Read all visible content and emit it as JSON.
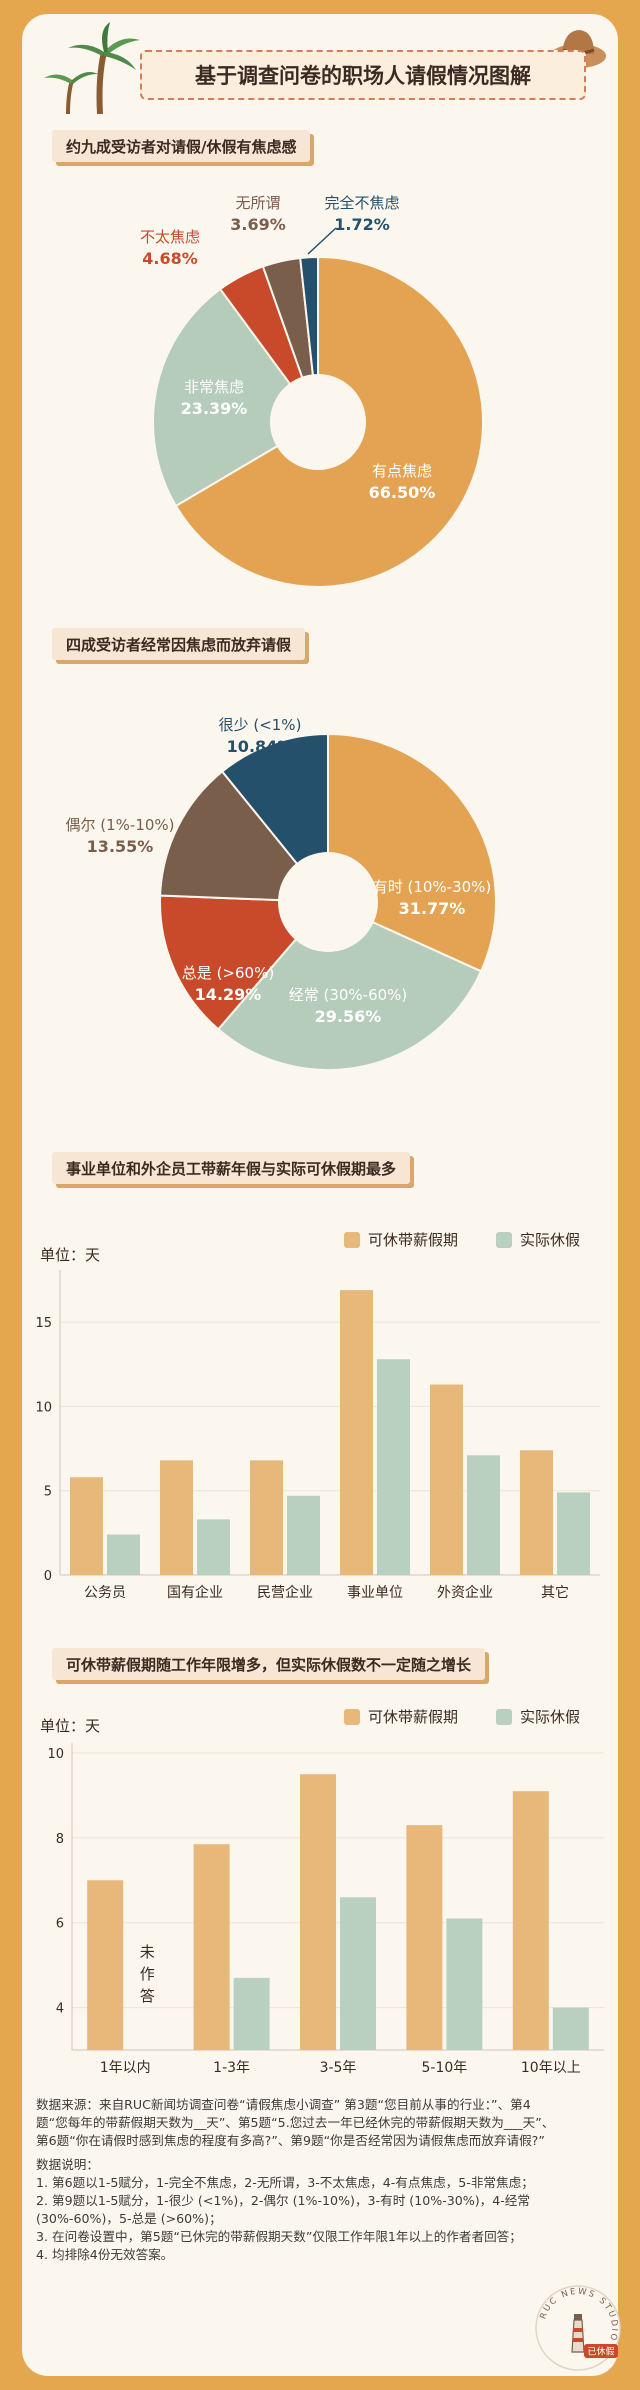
{
  "title": "基于调查问卷的职场人请假情况图解",
  "sections": [
    "约九成受访者对请假/休假有焦虑感",
    "四成受访者经常因焦虑而放弃请假",
    "事业单位和外企员工带薪年假与实际可休假期最多",
    "可休带薪假期随工作年限增多，但实际休假数不一定随之增长"
  ],
  "colors": {
    "orange": "#e3a352",
    "sage": "#b5ccba",
    "red": "#c84a2a",
    "brown": "#7a5e4c",
    "teal": "#25506b",
    "barOrange": "#e8b77a",
    "barSage": "#b9d0c0"
  },
  "chart_data": [
    {
      "type": "pie",
      "labels": [
        "有点焦虑",
        "非常焦虑",
        "不太焦虑",
        "无所谓",
        "完全不焦虑"
      ],
      "values": [
        66.5,
        23.39,
        4.68,
        3.69,
        1.72
      ],
      "display": [
        "66.50%",
        "23.39%",
        "4.68%",
        "3.69%",
        "1.72%"
      ]
    },
    {
      "type": "pie",
      "labels": [
        "有时 (10%-30%)",
        "经常 (30%-60%)",
        "总是 (>60%)",
        "偶尔 (1%-10%)",
        "很少 (<1%)"
      ],
      "values": [
        31.77,
        29.56,
        14.29,
        13.55,
        10.84
      ],
      "display": [
        "31.77%",
        "29.56%",
        "14.29%",
        "13.55%",
        "10.84%"
      ]
    },
    {
      "type": "bar",
      "unit": "单位：天",
      "categories": [
        "公务员",
        "国有企业",
        "民营企业",
        "事业单位",
        "外资企业",
        "其它"
      ],
      "series": [
        {
          "name": "可休带薪假期",
          "values": [
            5.8,
            6.8,
            6.8,
            16.9,
            11.3,
            7.4
          ]
        },
        {
          "name": "实际休假",
          "values": [
            2.4,
            3.3,
            4.7,
            12.8,
            7.1,
            4.9
          ]
        }
      ],
      "yticks": [
        0,
        5,
        10,
        15
      ],
      "ylim": [
        0,
        17.5
      ]
    },
    {
      "type": "bar",
      "unit": "单位：天",
      "categories": [
        "1年以内",
        "1-3年",
        "3-5年",
        "5-10年",
        "10年以上"
      ],
      "series": [
        {
          "name": "可休带薪假期",
          "values": [
            7.0,
            7.85,
            9.5,
            8.3,
            9.1
          ]
        },
        {
          "name": "实际休假",
          "values": [
            null,
            4.7,
            6.6,
            6.1,
            4.0
          ]
        }
      ],
      "yticks": [
        4,
        6,
        8,
        10
      ],
      "ylim": [
        3,
        10
      ],
      "annotation": "未作答"
    }
  ],
  "notes": {
    "source": "数据来源：来自RUC新闻坊调查问卷“请假焦虑小调查” 第3题“您目前从事的行业：”、第4题“您每年的带薪假期天数为__天”、第5题“5.您过去一年已经休完的带薪假期天数为___天”、第6题“你在请假时感到焦虑的程度有多高?”、第9题“你是否经常因为请假焦虑而放弃请假?”",
    "heading": "数据说明：",
    "items": [
      "1. 第6题以1-5赋分，1-完全不焦虑，2-无所谓，3-不太焦虑，4-有点焦虑，5-非常焦虑；",
      "2. 第9题以1-5赋分，1-很少 (<1%)，2-偶尔 (1%-10%)，3-有时 (10%-30%)，4-经常 (30%-60%)，5-总是 (>60%)；",
      "3. 在问卷设置中，第5题“已休完的带薪假期天数”仅限工作年限1年以上的作者者回答；",
      "4. 均排除4份无效答案。"
    ]
  },
  "logo": {
    "ring": "RUC NEWS STUDIO",
    "badge": "已休假"
  }
}
